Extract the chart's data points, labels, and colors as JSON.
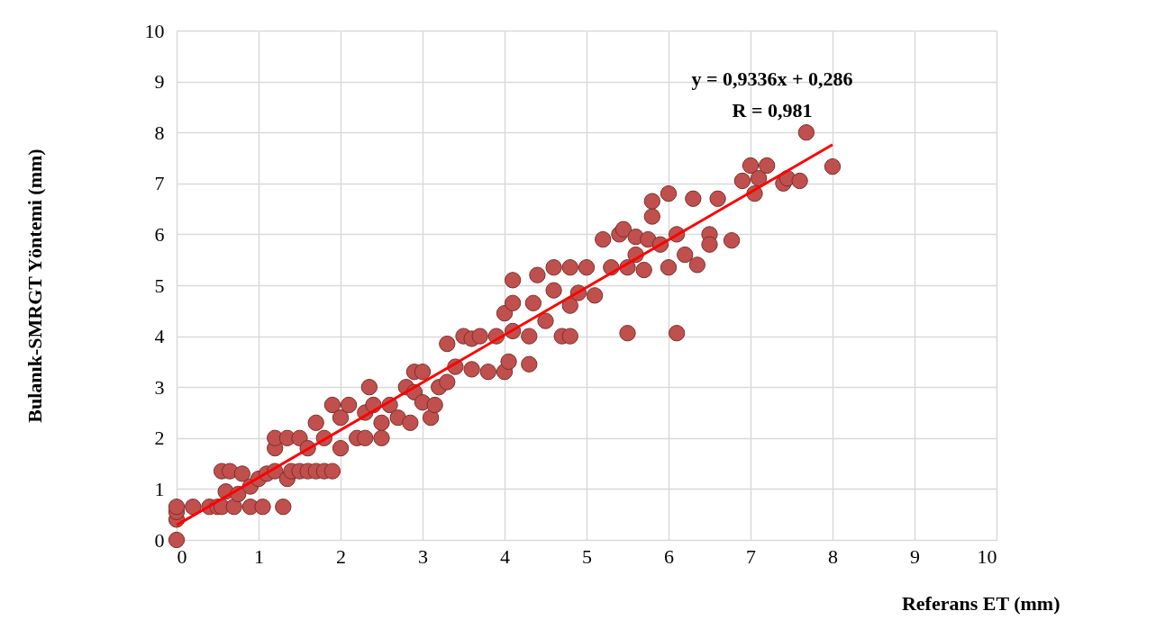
{
  "chart_data": {
    "type": "scatter",
    "xlabel": "Referans ET (mm)",
    "ylabel": "Bulanık-SMRGT Yöntemi  (mm)",
    "annotations": [
      "y = 0,9336x + 0,286",
      "R = 0,981"
    ],
    "xlim": [
      0,
      10
    ],
    "ylim": [
      0,
      10
    ],
    "xticks": [
      0,
      1,
      2,
      3,
      4,
      5,
      6,
      7,
      8,
      9,
      10
    ],
    "yticks": [
      0,
      1,
      2,
      3,
      4,
      5,
      6,
      7,
      8,
      9,
      10
    ],
    "grid": true,
    "marker": "circle",
    "series": [
      {
        "color": "#c0504d",
        "x": [
          0,
          0,
          0,
          0,
          0.2,
          0.4,
          0.5,
          0.55,
          0.7,
          0.9,
          1.05,
          1.3,
          0.55,
          0.65,
          0.8,
          0.6,
          0.75,
          0.9,
          1.0,
          1.1,
          1.2,
          1.2,
          1.2,
          1.35,
          1.4,
          1.5,
          1.6,
          1.7,
          1.8,
          1.9,
          1.35,
          1.5,
          1.6,
          1.7,
          1.8,
          1.9,
          2.0,
          2.0,
          2.1,
          2.2,
          2.3,
          2.3,
          2.35,
          2.4,
          2.5,
          2.5,
          2.6,
          2.7,
          2.8,
          2.85,
          2.9,
          2.9,
          3.0,
          3.0,
          3.1,
          3.15,
          3.2,
          3.3,
          3.3,
          3.4,
          3.5,
          3.6,
          3.6,
          3.7,
          3.8,
          3.9,
          4.0,
          4.05,
          4.1,
          4.0,
          4.1,
          4.1,
          4.3,
          4.3,
          4.35,
          4.4,
          4.5,
          4.6,
          4.6,
          4.7,
          4.8,
          4.8,
          4.8,
          4.9,
          5.0,
          5.1,
          5.2,
          5.3,
          5.4,
          5.45,
          5.5,
          5.5,
          5.6,
          5.6,
          5.7,
          5.75,
          5.8,
          5.8,
          5.9,
          6.0,
          6.0,
          6.1,
          6.1,
          6.2,
          6.3,
          6.35,
          6.5,
          6.5,
          6.6,
          6.77,
          6.9,
          7.0,
          7.05,
          7.1,
          7.2,
          7.4,
          7.45,
          7.6,
          7.68,
          8.0
        ],
        "values": [
          0,
          0.4,
          0.55,
          0.65,
          0.65,
          0.65,
          0.65,
          0.65,
          0.65,
          0.65,
          0.65,
          0.65,
          1.35,
          1.35,
          1.3,
          0.95,
          0.9,
          1.05,
          1.2,
          1.3,
          1.35,
          1.8,
          2.0,
          1.2,
          1.35,
          1.35,
          1.35,
          1.35,
          1.35,
          1.35,
          2.0,
          2.0,
          1.8,
          2.3,
          2.0,
          2.65,
          1.8,
          2.4,
          2.65,
          2.0,
          2.0,
          2.5,
          3.0,
          2.65,
          2.0,
          2.3,
          2.65,
          2.4,
          3.0,
          2.3,
          3.3,
          2.9,
          3.3,
          2.7,
          2.4,
          2.65,
          3.0,
          3.85,
          3.1,
          3.4,
          4.0,
          3.35,
          3.95,
          4.0,
          3.3,
          4.0,
          3.3,
          3.5,
          4.1,
          4.45,
          4.65,
          5.1,
          3.45,
          4.0,
          4.65,
          5.2,
          4.3,
          4.9,
          5.35,
          4.0,
          4.6,
          5.35,
          4.0,
          4.85,
          5.35,
          4.8,
          5.9,
          5.35,
          6.0,
          6.1,
          4.06,
          5.35,
          5.6,
          5.95,
          5.3,
          5.9,
          6.35,
          6.65,
          5.8,
          6.8,
          5.35,
          4.06,
          6.0,
          5.6,
          6.7,
          5.4,
          6.0,
          5.8,
          6.7,
          5.88,
          7.05,
          7.35,
          6.8,
          7.1,
          7.35,
          7.0,
          7.1,
          7.05,
          8.0,
          7.33
        ]
      },
      {
        "type": "line",
        "color": "#ff0000",
        "line_style": "solid",
        "marker": "none",
        "x": [
          0,
          8
        ],
        "values": [
          0.29,
          7.76
        ]
      }
    ]
  }
}
